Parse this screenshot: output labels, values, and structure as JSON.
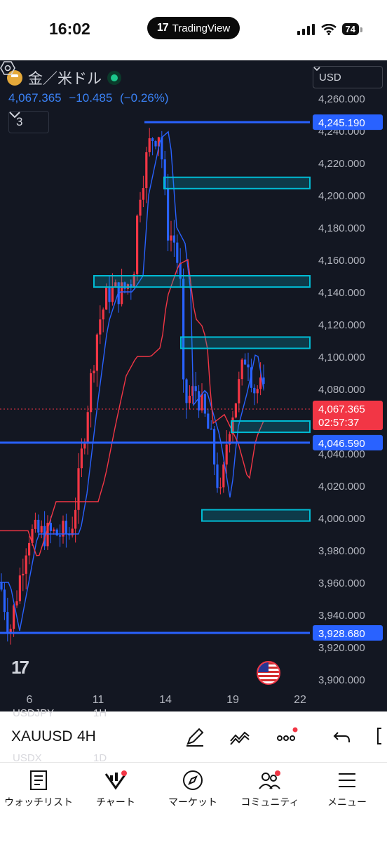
{
  "status_bar": {
    "time": "16:02",
    "app_name": "TradingView",
    "battery": "74"
  },
  "chart": {
    "symbol": "金／米ドル",
    "last_price": "4,067.365",
    "change": "−10.485",
    "change_pct": "(−0.26%)",
    "indicator_count": "3",
    "currency": "USD",
    "countdown": "02:57:37",
    "y_ticks": [
      "4,260.000",
      "4,240.000",
      "4,220.000",
      "4,200.000",
      "4,180.000",
      "4,160.000",
      "4,140.000",
      "4,120.000",
      "4,100.000",
      "4,080.000",
      "4,060.000",
      "4,040.000",
      "4,020.000",
      "4,000.000",
      "3,980.000",
      "3,960.000",
      "3,940.000",
      "3,920.000",
      "3,900.000"
    ],
    "x_ticks": [
      "6",
      "11",
      "14",
      "19",
      "22"
    ],
    "horizontal_lines": [
      {
        "label": "4,245.190",
        "price": 4245.19
      },
      {
        "label": "4,046.590",
        "price": 4046.59
      },
      {
        "label": "3,928.680",
        "price": 3928.68
      }
    ],
    "zones": [
      {
        "low": 4204,
        "high": 4211
      },
      {
        "low": 4143,
        "high": 4150
      },
      {
        "low": 4105,
        "high": 4112
      },
      {
        "low": 4053,
        "high": 4060
      },
      {
        "low": 3998,
        "high": 4005
      }
    ],
    "colors": {
      "up": "#f23645",
      "down": "#2962ff",
      "zone": "#00bcd4",
      "line": "#2962ff",
      "ma_fast": "#2962ff",
      "ma_slow": "#f23645",
      "background": "#131722"
    }
  },
  "toolbar": {
    "symbol": "XAUUSD",
    "timeframe": "4H",
    "ghost_symbols": [
      "USDJPY",
      "USDX"
    ],
    "ghost_timeframes": [
      "1H",
      "1D"
    ]
  },
  "tabs": [
    {
      "label": "ウォッチリスト",
      "icon": "watchlist-icon"
    },
    {
      "label": "チャート",
      "icon": "chart-icon"
    },
    {
      "label": "マーケット",
      "icon": "compass-icon"
    },
    {
      "label": "コミュニティ",
      "icon": "community-icon"
    },
    {
      "label": "メニュー",
      "icon": "menu-icon"
    }
  ]
}
